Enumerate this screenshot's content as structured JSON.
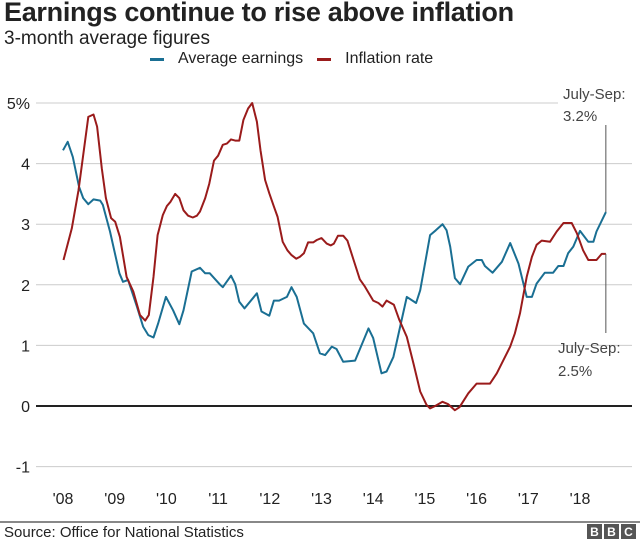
{
  "chart_data": {
    "type": "line",
    "title": "Earnings continue to rise above inflation",
    "subtitle": "3-month average figures",
    "xlabel": "",
    "ylabel": "",
    "ylim": [
      -1,
      5
    ],
    "xlim": [
      2007.6,
      2019.1
    ],
    "y_ticks": [
      {
        "value": 5,
        "label": "5%"
      },
      {
        "value": 4,
        "label": "4"
      },
      {
        "value": 3,
        "label": "3"
      },
      {
        "value": 2,
        "label": "2"
      },
      {
        "value": 1,
        "label": "1"
      },
      {
        "value": 0,
        "label": "0"
      },
      {
        "value": -1,
        "label": "-1"
      }
    ],
    "x_ticks": [
      {
        "value": 2008,
        "label": "'08"
      },
      {
        "value": 2009,
        "label": "'09"
      },
      {
        "value": 2010,
        "label": "'10"
      },
      {
        "value": 2011,
        "label": "'11"
      },
      {
        "value": 2012,
        "label": "'12"
      },
      {
        "value": 2013,
        "label": "'13"
      },
      {
        "value": 2014,
        "label": "'14"
      },
      {
        "value": 2015,
        "label": "'15"
      },
      {
        "value": 2016,
        "label": "'16"
      },
      {
        "value": 2017,
        "label": "'17"
      },
      {
        "value": 2018,
        "label": "'18"
      }
    ],
    "grid": true,
    "legend_position": "top",
    "series": [
      {
        "name": "Average earnings",
        "color": "#1a6f93",
        "points": [
          [
            2008.0,
            4.22
          ],
          [
            2008.09,
            4.36
          ],
          [
            2008.19,
            4.11
          ],
          [
            2008.31,
            3.62
          ],
          [
            2008.39,
            3.43
          ],
          [
            2008.49,
            3.33
          ],
          [
            2008.59,
            3.41
          ],
          [
            2008.72,
            3.39
          ],
          [
            2008.77,
            3.32
          ],
          [
            2008.91,
            2.88
          ],
          [
            2009.09,
            2.19
          ],
          [
            2009.16,
            2.05
          ],
          [
            2009.26,
            2.08
          ],
          [
            2009.43,
            1.64
          ],
          [
            2009.55,
            1.31
          ],
          [
            2009.65,
            1.17
          ],
          [
            2009.75,
            1.13
          ],
          [
            2009.84,
            1.36
          ],
          [
            2009.99,
            1.8
          ],
          [
            2010.13,
            1.58
          ],
          [
            2010.25,
            1.35
          ],
          [
            2010.33,
            1.58
          ],
          [
            2010.49,
            2.22
          ],
          [
            2010.65,
            2.28
          ],
          [
            2010.75,
            2.19
          ],
          [
            2010.84,
            2.19
          ],
          [
            2011.04,
            2.0
          ],
          [
            2011.09,
            1.96
          ],
          [
            2011.25,
            2.15
          ],
          [
            2011.33,
            2.01
          ],
          [
            2011.41,
            1.72
          ],
          [
            2011.51,
            1.61
          ],
          [
            2011.75,
            1.86
          ],
          [
            2011.84,
            1.56
          ],
          [
            2011.99,
            1.49
          ],
          [
            2012.08,
            1.74
          ],
          [
            2012.18,
            1.74
          ],
          [
            2012.33,
            1.8
          ],
          [
            2012.42,
            1.96
          ],
          [
            2012.52,
            1.8
          ],
          [
            2012.66,
            1.36
          ],
          [
            2012.84,
            1.2
          ],
          [
            2012.97,
            0.87
          ],
          [
            2013.07,
            0.84
          ],
          [
            2013.2,
            0.98
          ],
          [
            2013.29,
            0.94
          ],
          [
            2013.42,
            0.73
          ],
          [
            2013.65,
            0.75
          ],
          [
            2013.91,
            1.28
          ],
          [
            2014.0,
            1.12
          ],
          [
            2014.16,
            0.54
          ],
          [
            2014.26,
            0.57
          ],
          [
            2014.39,
            0.81
          ],
          [
            2014.65,
            1.8
          ],
          [
            2014.83,
            1.7
          ],
          [
            2014.91,
            1.91
          ],
          [
            2015.1,
            2.82
          ],
          [
            2015.21,
            2.9
          ],
          [
            2015.34,
            3.0
          ],
          [
            2015.42,
            2.9
          ],
          [
            2015.49,
            2.63
          ],
          [
            2015.58,
            2.11
          ],
          [
            2015.68,
            2.01
          ],
          [
            2015.84,
            2.3
          ],
          [
            2016.0,
            2.41
          ],
          [
            2016.1,
            2.41
          ],
          [
            2016.16,
            2.31
          ],
          [
            2016.31,
            2.2
          ],
          [
            2016.49,
            2.38
          ],
          [
            2016.65,
            2.69
          ],
          [
            2016.81,
            2.35
          ],
          [
            2016.97,
            1.8
          ],
          [
            2017.07,
            1.8
          ],
          [
            2017.16,
            2.02
          ],
          [
            2017.32,
            2.2
          ],
          [
            2017.48,
            2.2
          ],
          [
            2017.58,
            2.31
          ],
          [
            2017.68,
            2.31
          ],
          [
            2017.77,
            2.52
          ],
          [
            2017.87,
            2.63
          ],
          [
            2018.0,
            2.89
          ],
          [
            2018.16,
            2.71
          ],
          [
            2018.26,
            2.71
          ],
          [
            2018.32,
            2.88
          ],
          [
            2018.5,
            3.2
          ]
        ]
      },
      {
        "name": "Inflation rate",
        "color": "#9a1b1b",
        "points": [
          [
            2008.01,
            2.41
          ],
          [
            2008.17,
            2.93
          ],
          [
            2008.3,
            3.56
          ],
          [
            2008.49,
            4.77
          ],
          [
            2008.59,
            4.81
          ],
          [
            2008.66,
            4.61
          ],
          [
            2008.75,
            3.92
          ],
          [
            2008.83,
            3.43
          ],
          [
            2008.93,
            3.1
          ],
          [
            2009.01,
            3.04
          ],
          [
            2009.1,
            2.79
          ],
          [
            2009.23,
            2.13
          ],
          [
            2009.36,
            1.89
          ],
          [
            2009.49,
            1.5
          ],
          [
            2009.59,
            1.41
          ],
          [
            2009.66,
            1.5
          ],
          [
            2009.75,
            2.13
          ],
          [
            2009.83,
            2.82
          ],
          [
            2009.93,
            3.15
          ],
          [
            2010.01,
            3.3
          ],
          [
            2010.08,
            3.37
          ],
          [
            2010.17,
            3.5
          ],
          [
            2010.25,
            3.43
          ],
          [
            2010.33,
            3.23
          ],
          [
            2010.42,
            3.14
          ],
          [
            2010.51,
            3.11
          ],
          [
            2010.59,
            3.14
          ],
          [
            2010.65,
            3.21
          ],
          [
            2010.75,
            3.43
          ],
          [
            2010.83,
            3.67
          ],
          [
            2010.92,
            4.05
          ],
          [
            2011.0,
            4.13
          ],
          [
            2011.09,
            4.31
          ],
          [
            2011.17,
            4.33
          ],
          [
            2011.25,
            4.4
          ],
          [
            2011.33,
            4.38
          ],
          [
            2011.41,
            4.38
          ],
          [
            2011.49,
            4.72
          ],
          [
            2011.58,
            4.91
          ],
          [
            2011.66,
            5.0
          ],
          [
            2011.75,
            4.69
          ],
          [
            2011.82,
            4.22
          ],
          [
            2011.91,
            3.73
          ],
          [
            2011.99,
            3.51
          ],
          [
            2012.08,
            3.29
          ],
          [
            2012.15,
            3.12
          ],
          [
            2012.25,
            2.71
          ],
          [
            2012.34,
            2.57
          ],
          [
            2012.42,
            2.49
          ],
          [
            2012.51,
            2.43
          ],
          [
            2012.58,
            2.46
          ],
          [
            2012.66,
            2.52
          ],
          [
            2012.74,
            2.7
          ],
          [
            2012.84,
            2.7
          ],
          [
            2012.91,
            2.74
          ],
          [
            2013.0,
            2.77
          ],
          [
            2013.1,
            2.68
          ],
          [
            2013.18,
            2.65
          ],
          [
            2013.24,
            2.68
          ],
          [
            2013.32,
            2.81
          ],
          [
            2013.42,
            2.81
          ],
          [
            2013.5,
            2.73
          ],
          [
            2013.62,
            2.41
          ],
          [
            2013.74,
            2.09
          ],
          [
            2013.84,
            1.97
          ],
          [
            2014.0,
            1.74
          ],
          [
            2014.1,
            1.7
          ],
          [
            2014.18,
            1.64
          ],
          [
            2014.26,
            1.74
          ],
          [
            2014.4,
            1.67
          ],
          [
            2014.5,
            1.43
          ],
          [
            2014.65,
            1.14
          ],
          [
            2014.78,
            0.7
          ],
          [
            2014.91,
            0.24
          ],
          [
            2015.03,
            0.02
          ],
          [
            2015.1,
            -0.04
          ],
          [
            2015.2,
            0.0
          ],
          [
            2015.34,
            0.07
          ],
          [
            2015.45,
            0.03
          ],
          [
            2015.58,
            -0.07
          ],
          [
            2015.67,
            -0.02
          ],
          [
            2015.84,
            0.21
          ],
          [
            2016.0,
            0.37
          ],
          [
            2016.26,
            0.37
          ],
          [
            2016.39,
            0.54
          ],
          [
            2016.52,
            0.76
          ],
          [
            2016.65,
            0.98
          ],
          [
            2016.74,
            1.2
          ],
          [
            2016.84,
            1.53
          ],
          [
            2016.97,
            2.13
          ],
          [
            2017.07,
            2.46
          ],
          [
            2017.16,
            2.66
          ],
          [
            2017.26,
            2.73
          ],
          [
            2017.42,
            2.71
          ],
          [
            2017.55,
            2.88
          ],
          [
            2017.68,
            3.02
          ],
          [
            2017.84,
            3.02
          ],
          [
            2017.94,
            2.85
          ],
          [
            2018.06,
            2.57
          ],
          [
            2018.16,
            2.41
          ],
          [
            2018.32,
            2.41
          ],
          [
            2018.42,
            2.51
          ],
          [
            2018.5,
            2.51
          ]
        ]
      }
    ],
    "annotations": [
      {
        "series": "Average earnings",
        "line1": "July-Sep:",
        "line2": "3.2%"
      },
      {
        "series": "Inflation rate",
        "line1": "July-Sep:",
        "line2": "2.5%"
      }
    ],
    "source": "Source: Office for National Statistics"
  },
  "logo": {
    "letters": [
      "B",
      "B",
      "C"
    ]
  }
}
